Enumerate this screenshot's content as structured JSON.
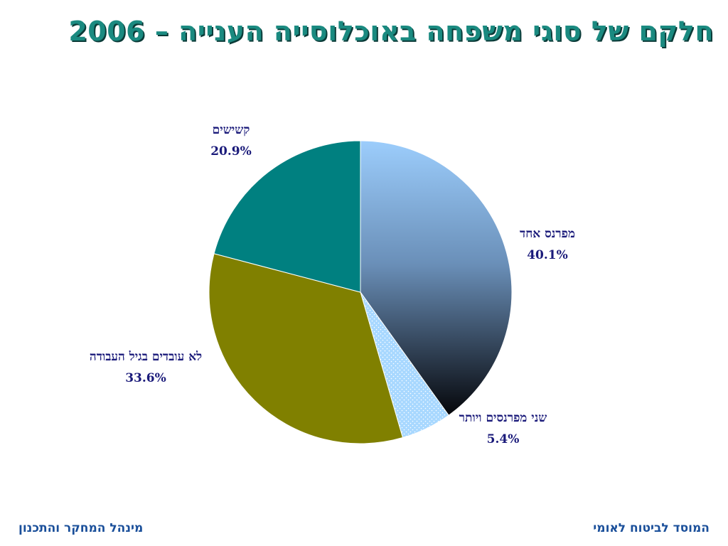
{
  "title": "חלקם של סוגי משפחה באוכלוסייה הענייה – 2006",
  "footer": {
    "right": "המוסד לביטוח לאומי",
    "left": "מינהל המחקר והתכנון"
  },
  "colors": {
    "title": "#1a8a80",
    "labels": "#1a1a7a",
    "footer": "#1a4f9a"
  },
  "chart_data": {
    "type": "pie",
    "start": "12 o'clock",
    "direction": "clockwise",
    "slices": [
      {
        "name": "מפרנס אחד",
        "value": 40.1,
        "label": "40.1%",
        "color": "gradient #9ccdfc to #0a0a10"
      },
      {
        "name": "שני מפרנסים ויותר",
        "value": 5.4,
        "label": "5.4%",
        "color": "#a8d8ff dotted"
      },
      {
        "name": "לא עובדים בגיל העבודה",
        "value": 33.6,
        "label": "33.6%",
        "color": "#808000"
      },
      {
        "name": "קשישים",
        "value": 20.9,
        "label": "20.9%",
        "color": "#008080"
      }
    ]
  }
}
